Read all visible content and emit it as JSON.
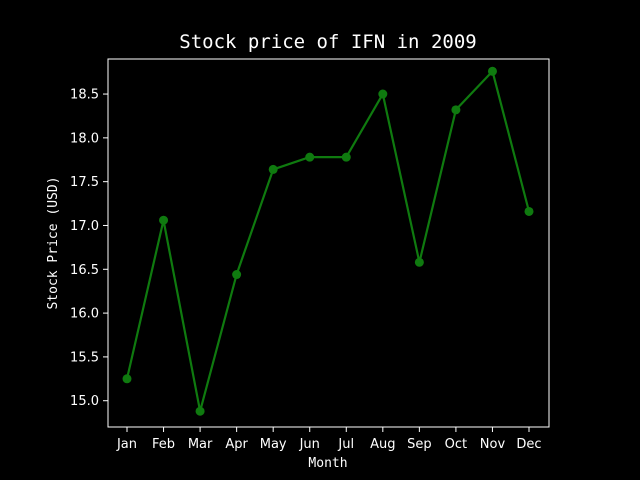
{
  "chart_data": {
    "type": "line",
    "title": "Stock price of IFN in 2009",
    "xlabel": "Month",
    "ylabel": "Stock Price (USD)",
    "categories": [
      "Jan",
      "Feb",
      "Mar",
      "Apr",
      "May",
      "Jun",
      "Jul",
      "Aug",
      "Sep",
      "Oct",
      "Nov",
      "Dec"
    ],
    "series": [
      {
        "values": [
          15.25,
          17.06,
          14.88,
          16.44,
          17.64,
          17.78,
          17.78,
          18.5,
          16.58,
          18.32,
          18.76,
          17.16
        ],
        "color": "#0f7a0f"
      }
    ],
    "ylim": [
      14.7,
      18.9
    ],
    "yticks": [
      15.0,
      15.5,
      16.0,
      16.5,
      17.0,
      17.5,
      18.0,
      18.5
    ],
    "grid": false,
    "legend": "none"
  }
}
